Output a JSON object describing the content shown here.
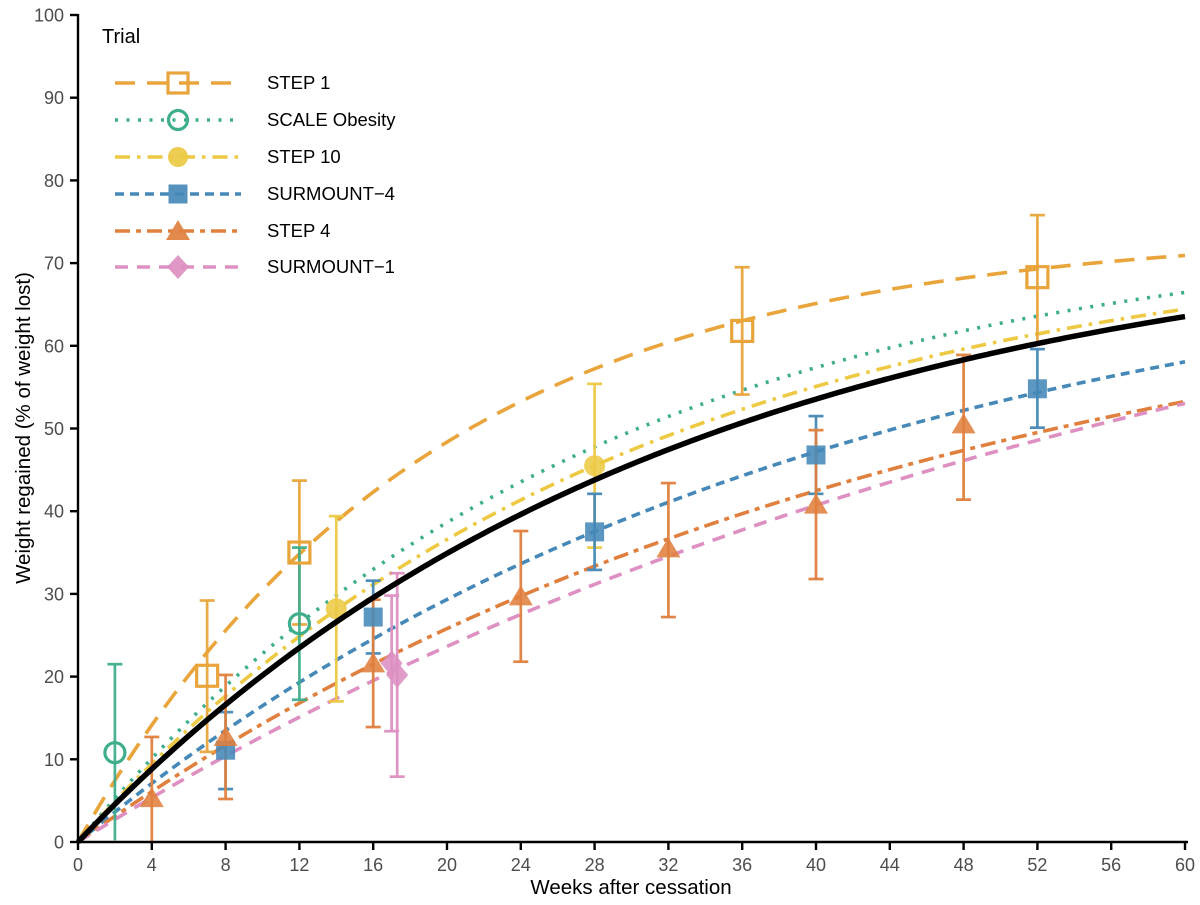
{
  "figure": {
    "legend_title": "Trial"
  },
  "chart_data": {
    "type": "line",
    "title": "",
    "xlabel": "Weeks after cessation",
    "ylabel": "Weight regained (% of weight lost)",
    "xlim": [
      0,
      60
    ],
    "ylim": [
      0,
      100
    ],
    "x_ticks": [
      0,
      4,
      8,
      12,
      16,
      20,
      24,
      28,
      32,
      36,
      40,
      44,
      48,
      52,
      56,
      60
    ],
    "y_ticks": [
      0,
      10,
      20,
      30,
      40,
      50,
      60,
      70,
      80,
      90,
      100
    ],
    "grid": false,
    "legend_position": "top-left-inside",
    "curve_model": "y = A * (1 - exp(-k * weeks))",
    "series": [
      {
        "name": "STEP 1",
        "color": "#E9A53C",
        "dash": "20 12",
        "marker": "open-square",
        "in_legend": true,
        "curve": {
          "A": 74,
          "k": 0.053
        },
        "points": [
          {
            "x": 7,
            "y": 20.1,
            "lo": 10.9,
            "hi": 29.2
          },
          {
            "x": 12,
            "y": 35.0,
            "lo": 26.3,
            "hi": 43.7
          },
          {
            "x": 36,
            "y": 61.8,
            "lo": 54.1,
            "hi": 69.5
          },
          {
            "x": 52,
            "y": 68.3,
            "lo": 60.3,
            "hi": 75.8
          }
        ]
      },
      {
        "name": "SCALE Obesity",
        "color": "#3FAE8D",
        "dash": "3 8.5",
        "marker": "open-circle",
        "in_legend": true,
        "curve": {
          "A": 75,
          "k": 0.0362
        },
        "points": [
          {
            "x": 2,
            "y": 10.8,
            "lo": 0.2,
            "hi": 21.5
          },
          {
            "x": 12,
            "y": 26.4,
            "lo": 17.2,
            "hi": 35.6
          }
        ]
      },
      {
        "name": "STEP 10",
        "color": "#EDC944",
        "dash": "15 7 3.5 7",
        "marker": "circle",
        "in_legend": true,
        "curve": {
          "A": 74,
          "k": 0.0341
        },
        "points": [
          {
            "x": 14,
            "y": 28.2,
            "lo": 17.0,
            "hi": 39.4
          },
          {
            "x": 28,
            "y": 45.5,
            "lo": 35.6,
            "hi": 55.4
          }
        ]
      },
      {
        "name": "SURMOUNT−4",
        "color": "#4689B8",
        "dash": "9 6",
        "marker": "square",
        "in_legend": true,
        "curve": {
          "A": 75,
          "k": 0.0248
        },
        "points": [
          {
            "x": 8,
            "y": 11.1,
            "lo": 6.4,
            "hi": 15.7
          },
          {
            "x": 16,
            "y": 27.2,
            "lo": 22.8,
            "hi": 31.6
          },
          {
            "x": 28,
            "y": 37.5,
            "lo": 32.9,
            "hi": 42.1
          },
          {
            "x": 40,
            "y": 46.8,
            "lo": 42.1,
            "hi": 51.5
          },
          {
            "x": 52,
            "y": 54.8,
            "lo": 50.1,
            "hi": 59.6
          }
        ]
      },
      {
        "name": "STEP 4",
        "color": "#E0803E",
        "dash": "15 6 5 6",
        "marker": "triangle",
        "in_legend": true,
        "curve": {
          "A": 73,
          "k": 0.0218
        },
        "points": [
          {
            "x": 4,
            "y": 5.3,
            "lo": 0,
            "hi": 12.7
          },
          {
            "x": 8,
            "y": 12.7,
            "lo": 5.2,
            "hi": 20.2
          },
          {
            "x": 16,
            "y": 21.6,
            "lo": 13.9,
            "hi": 29.3
          },
          {
            "x": 24,
            "y": 29.7,
            "lo": 21.8,
            "hi": 37.6
          },
          {
            "x": 32,
            "y": 35.5,
            "lo": 27.2,
            "hi": 43.4
          },
          {
            "x": 40,
            "y": 40.8,
            "lo": 31.8,
            "hi": 49.8
          },
          {
            "x": 48,
            "y": 50.5,
            "lo": 41.4,
            "hi": 58.9
          }
        ]
      },
      {
        "name": "SURMOUNT−1",
        "color": "#DD90C1",
        "dash": "13 9",
        "marker": "diamond",
        "in_legend": true,
        "curve": {
          "A": 85,
          "k": 0.0163
        },
        "points": [
          {
            "x": 17,
            "y": 21.6,
            "lo": 13.4,
            "hi": 29.8
          },
          {
            "x": 17.3,
            "y": 20.2,
            "lo": 7.9,
            "hi": 32.5
          }
        ]
      },
      {
        "name": "Overall fit",
        "color": "#000000",
        "dash": "",
        "marker": "none",
        "in_legend": false,
        "curve": {
          "A": 75,
          "k": 0.0313
        },
        "points": []
      }
    ]
  }
}
